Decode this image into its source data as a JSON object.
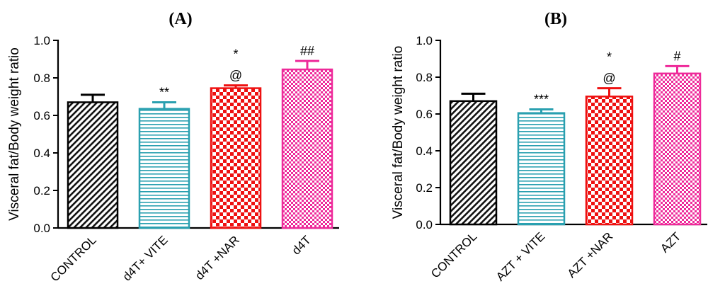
{
  "chart_data": [
    {
      "type": "bar",
      "title": "(A)",
      "xlabel": "",
      "ylabel": "Visceral fat/Body weight ratio",
      "ylim": [
        0,
        1.0
      ],
      "yticks": [
        "0.0",
        "0.2",
        "0.4",
        "0.6",
        "0.8",
        "1.0"
      ],
      "grid": false,
      "categories": [
        "CONTROL",
        "d4T+ VITE",
        "d4T +NAR",
        "d4T"
      ],
      "values": [
        0.67,
        0.635,
        0.745,
        0.845
      ],
      "errors": [
        0.04,
        0.035,
        0.015,
        0.045
      ],
      "colors": [
        "#000000",
        "#2aa0b0",
        "#ee1111",
        "#ee2a9a"
      ],
      "patterns": [
        "diagonal",
        "horizontal",
        "checker",
        "fine-checker"
      ],
      "annotations": [
        {
          "category": "d4T+ VITE",
          "lines": [
            "**"
          ]
        },
        {
          "category": "d4T +NAR",
          "lines": [
            "*",
            "@"
          ]
        },
        {
          "category": "d4T",
          "lines": [
            "##"
          ]
        }
      ]
    },
    {
      "type": "bar",
      "title": "(B)",
      "xlabel": "",
      "ylabel": "Visceral fat/Body weight ratio",
      "ylim": [
        0,
        1.0
      ],
      "yticks": [
        "0.0",
        "0.2",
        "0.4",
        "0.6",
        "0.8",
        "1.0"
      ],
      "grid": false,
      "categories": [
        "CONTROL",
        "AZT + VITE",
        "AZT +NAR",
        "AZT"
      ],
      "values": [
        0.67,
        0.605,
        0.695,
        0.82
      ],
      "errors": [
        0.04,
        0.02,
        0.045,
        0.04
      ],
      "colors": [
        "#000000",
        "#2aa0b0",
        "#ee1111",
        "#ee2a9a"
      ],
      "patterns": [
        "diagonal",
        "horizontal",
        "checker",
        "fine-checker"
      ],
      "annotations": [
        {
          "category": "AZT + VITE",
          "lines": [
            "***"
          ]
        },
        {
          "category": "AZT +NAR",
          "lines": [
            "*",
            "@"
          ]
        },
        {
          "category": "AZT",
          "lines": [
            "#"
          ]
        }
      ]
    }
  ]
}
